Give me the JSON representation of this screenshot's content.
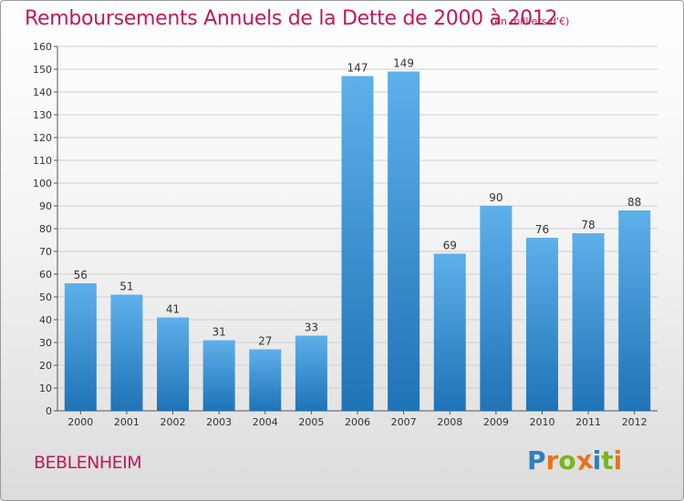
{
  "title": "Remboursements Annuels de la Dette de 2000 à 2012",
  "subtitle": "(en milliers d'€)",
  "commune": "BEBLENHEIM",
  "logo": {
    "letters": [
      "P",
      "r",
      "o",
      "x",
      "i",
      "t",
      "i"
    ],
    "colors": [
      "#2e7fc2",
      "#e8731a",
      "#7ab51d",
      "#e8731a",
      "#2e7fc2",
      "#7ab51d",
      "#e8731a"
    ]
  },
  "colors": {
    "title": "#c2185b",
    "bar_top": "#5eb0ea",
    "bar_bottom": "#1f73b7",
    "grid": "#cfcfcf",
    "axis": "#555555"
  },
  "chart_data": {
    "type": "bar",
    "categories": [
      "2000",
      "2001",
      "2002",
      "2003",
      "2004",
      "2005",
      "2006",
      "2007",
      "2008",
      "2009",
      "2010",
      "2011",
      "2012"
    ],
    "values": [
      56,
      51,
      41,
      31,
      27,
      33,
      147,
      149,
      69,
      90,
      76,
      78,
      88
    ],
    "title": "Remboursements Annuels de la Dette de 2000 à 2012",
    "subtitle": "(en milliers d'€)",
    "xlabel": "",
    "ylabel": "",
    "ylim": [
      0,
      160
    ],
    "yticks": [
      0,
      10,
      20,
      30,
      40,
      50,
      60,
      70,
      80,
      90,
      100,
      110,
      120,
      130,
      140,
      150,
      160
    ],
    "grid": true,
    "legend": "none"
  }
}
